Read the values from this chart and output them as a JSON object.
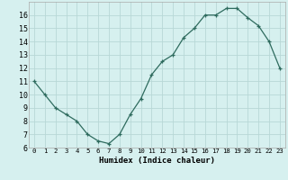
{
  "x": [
    0,
    1,
    2,
    3,
    4,
    5,
    6,
    7,
    8,
    9,
    10,
    11,
    12,
    13,
    14,
    15,
    16,
    17,
    18,
    19,
    20,
    21,
    22,
    23
  ],
  "y": [
    11,
    10,
    9,
    8.5,
    8,
    7,
    6.5,
    6.3,
    7,
    8.5,
    9.7,
    11.5,
    12.5,
    13,
    14.3,
    15,
    16,
    16,
    16.5,
    16.5,
    15.8,
    15.2,
    14,
    12
  ],
  "line_color": "#2e6b5e",
  "marker_color": "#2e6b5e",
  "bg_color": "#d6f0ef",
  "grid_color": "#b8d8d6",
  "xlabel": "Humidex (Indice chaleur)",
  "xlim": [
    -0.5,
    23.5
  ],
  "ylim": [
    6,
    17
  ],
  "yticks": [
    6,
    7,
    8,
    9,
    10,
    11,
    12,
    13,
    14,
    15,
    16
  ],
  "xticks": [
    0,
    1,
    2,
    3,
    4,
    5,
    6,
    7,
    8,
    9,
    10,
    11,
    12,
    13,
    14,
    15,
    16,
    17,
    18,
    19,
    20,
    21,
    22,
    23
  ],
  "xtick_labels": [
    "0",
    "1",
    "2",
    "3",
    "4",
    "5",
    "6",
    "7",
    "8",
    "9",
    "10",
    "11",
    "12",
    "13",
    "14",
    "15",
    "16",
    "17",
    "18",
    "19",
    "20",
    "21",
    "22",
    "23"
  ]
}
